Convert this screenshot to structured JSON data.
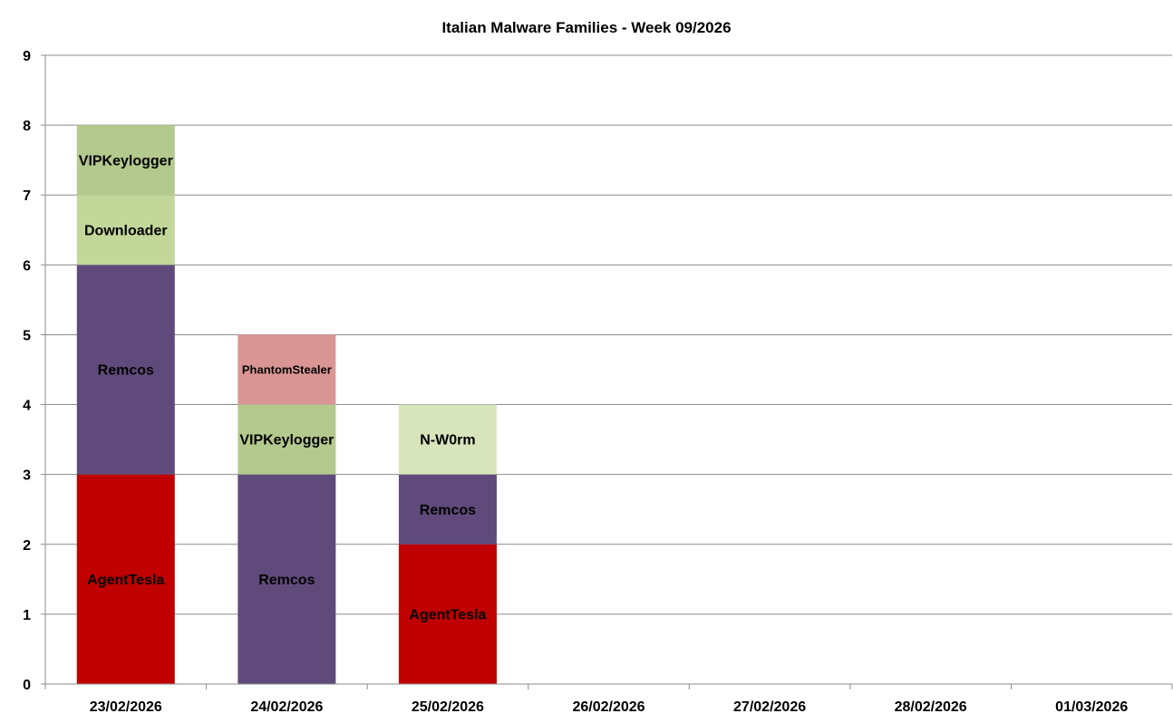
{
  "chart_data": {
    "type": "bar",
    "stacked": true,
    "title": "Italian Malware Families - Week 09/2026",
    "xlabel": "",
    "ylabel": "",
    "ylim": [
      0,
      9
    ],
    "yticks": [
      0,
      1,
      2,
      3,
      4,
      5,
      6,
      7,
      8,
      9
    ],
    "grid": true,
    "legend": "none",
    "categories": [
      "23/02/2026",
      "24/02/2026",
      "25/02/2026",
      "26/02/2026",
      "27/02/2026",
      "28/02/2026",
      "01/03/2026"
    ],
    "colors": {
      "AgentTesla": "#C00000",
      "Remcos": "#604A7B",
      "VIPKeylogger": "#B3C98D",
      "Downloader": "#C4D79B",
      "PhantomStealer": "#DA9694",
      "N-W0rm": "#D8E4BC"
    },
    "stacks": [
      [
        {
          "name": "AgentTesla",
          "value": 3
        },
        {
          "name": "Remcos",
          "value": 3
        },
        {
          "name": "Downloader",
          "value": 1
        },
        {
          "name": "VIPKeylogger",
          "value": 1
        }
      ],
      [
        {
          "name": "Remcos",
          "value": 3
        },
        {
          "name": "VIPKeylogger",
          "value": 1
        },
        {
          "name": "PhantomStealer",
          "value": 1
        }
      ],
      [
        {
          "name": "AgentTesla",
          "value": 2
        },
        {
          "name": "Remcos",
          "value": 1
        },
        {
          "name": "N-W0rm",
          "value": 1
        }
      ],
      [],
      [],
      [],
      []
    ]
  }
}
